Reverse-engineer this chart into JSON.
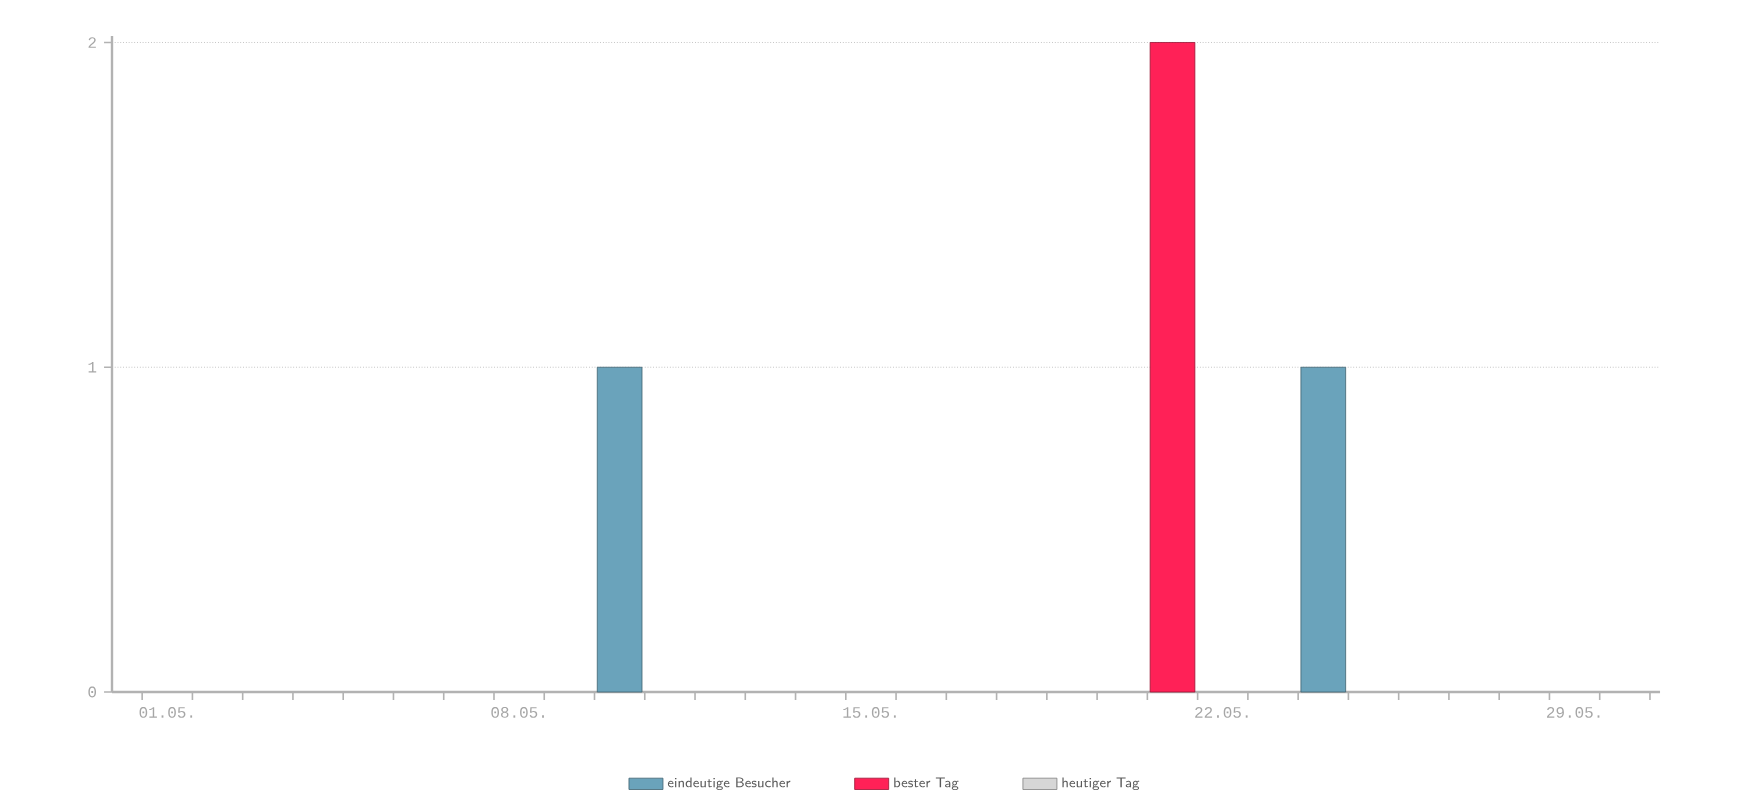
{
  "chart_data": {
    "type": "bar",
    "categories": [
      "01.05.",
      null,
      null,
      null,
      null,
      null,
      null,
      "08.05.",
      null,
      null,
      null,
      null,
      null,
      null,
      "15.05.",
      null,
      null,
      null,
      null,
      null,
      null,
      "22.05.",
      null,
      null,
      null,
      null,
      null,
      null,
      "29.05.",
      null,
      null
    ],
    "series": [
      {
        "name": "eindeutige Besucher",
        "color": "#6aa3bb",
        "values": [
          null,
          null,
          null,
          null,
          null,
          null,
          null,
          null,
          null,
          1,
          null,
          null,
          null,
          null,
          null,
          null,
          null,
          null,
          null,
          null,
          null,
          null,
          null,
          1,
          null,
          null,
          null,
          null,
          null,
          null,
          null
        ]
      },
      {
        "name": "bester Tag",
        "color": "#ff2157",
        "values": [
          null,
          null,
          null,
          null,
          null,
          null,
          null,
          null,
          null,
          null,
          null,
          null,
          null,
          null,
          null,
          null,
          null,
          null,
          null,
          null,
          2,
          null,
          null,
          null,
          null,
          null,
          null,
          null,
          null,
          null,
          null
        ]
      },
      {
        "name": "heutiger Tag",
        "color": "#d6d6d6",
        "values": [
          null,
          null,
          null,
          null,
          null,
          null,
          null,
          null,
          null,
          null,
          null,
          null,
          null,
          null,
          null,
          null,
          null,
          null,
          null,
          null,
          null,
          null,
          null,
          null,
          null,
          null,
          null,
          null,
          null,
          null,
          null
        ]
      }
    ],
    "ylim": [
      0,
      2.02
    ],
    "yticks": [
      0,
      1,
      2
    ],
    "grid": "y",
    "legend": "bottom"
  }
}
